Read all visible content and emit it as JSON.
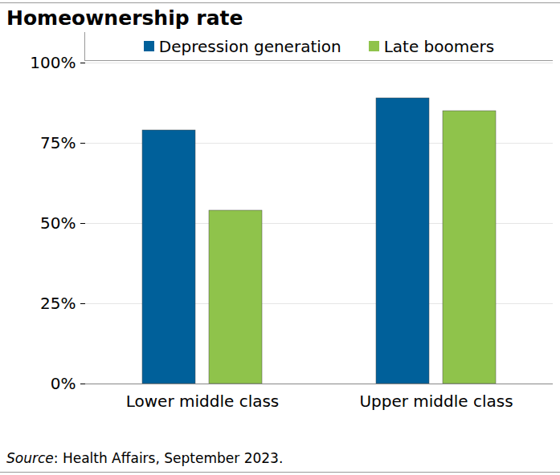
{
  "chart_data": {
    "type": "bar",
    "title": "Homeownership rate",
    "categories": [
      "Lower middle class",
      "Upper middle class"
    ],
    "series": [
      {
        "name": "Depression generation",
        "color": "#00609a",
        "values": [
          79,
          89
        ]
      },
      {
        "name": "Late boomers",
        "color": "#8fc34b",
        "values": [
          54,
          85
        ]
      }
    ],
    "ylim": [
      0,
      100
    ],
    "yticks": [
      {
        "value": 0,
        "label": "0%"
      },
      {
        "value": 25,
        "label": "25%"
      },
      {
        "value": 50,
        "label": "50%"
      },
      {
        "value": 75,
        "label": "75%"
      },
      {
        "value": 100,
        "label": "100%"
      }
    ],
    "grid": true,
    "legend": "top",
    "source": "Source: Health Affairs, September 2023."
  }
}
